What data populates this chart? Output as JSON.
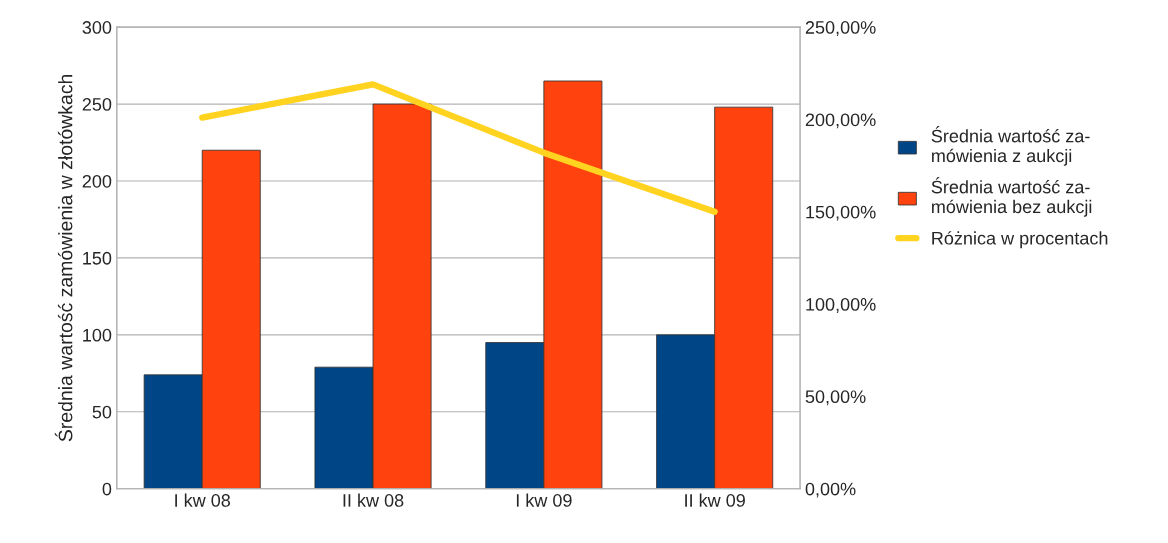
{
  "chart_data": {
    "type": "bar",
    "ylabel": "Średnia wartość zamówienia w złotówkach",
    "categories": [
      "I kw 08",
      "II kw 08",
      "I kw 09",
      "II kw 09"
    ],
    "series": [
      {
        "name": "Średnia wartość za-\nmówienia z aukcji",
        "color": "#004586",
        "values": [
          74,
          79,
          95,
          100
        ]
      },
      {
        "name": "Średnia wartość za-\nmówienia bez aukcji",
        "color": "#ff420e",
        "values": [
          220,
          250,
          265,
          248
        ]
      },
      {
        "name": "Różnica w procentach",
        "type": "line",
        "axis": "y2",
        "color": "#ffd320",
        "values": [
          201,
          219,
          182,
          150
        ]
      }
    ],
    "ylim": [
      0,
      300
    ],
    "yticks": [
      0,
      50,
      100,
      150,
      200,
      250,
      300
    ],
    "y2lim": [
      0,
      250
    ],
    "y2ticks": [
      {
        "value": 0,
        "label": "0,00%"
      },
      {
        "value": 50,
        "label": "50,00%"
      },
      {
        "value": 100,
        "label": "100,00%"
      },
      {
        "value": 150,
        "label": "150,00%"
      },
      {
        "value": 200,
        "label": "200,00%"
      },
      {
        "value": 250,
        "label": "250,00%"
      }
    ],
    "grid": "y",
    "legend": "right"
  }
}
